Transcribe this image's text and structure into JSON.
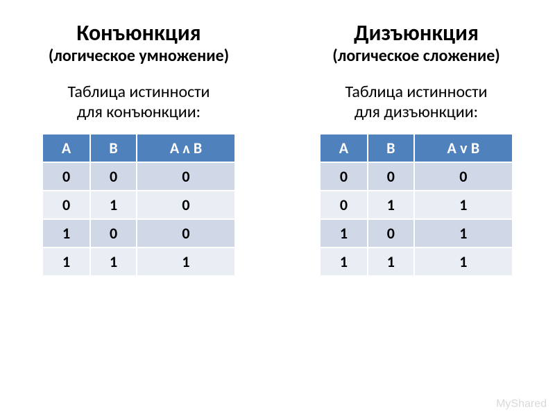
{
  "left": {
    "title": "Конъюнкция",
    "subtitle": "(логическое умножение)",
    "caption_line1": "Таблица истинности",
    "caption_line2": "для конъюнкции:",
    "table": {
      "columns": [
        "A",
        "B",
        "A ᴧ B"
      ],
      "rows": [
        [
          "0",
          "0",
          "0"
        ],
        [
          "0",
          "1",
          "0"
        ],
        [
          "1",
          "0",
          "0"
        ],
        [
          "1",
          "1",
          "1"
        ]
      ]
    }
  },
  "right": {
    "title": "Дизъюнкция",
    "subtitle": "(логическое сложение)",
    "caption_line1": "Таблица истинности",
    "caption_line2": "для дизъюнкции:",
    "table": {
      "columns": [
        "A",
        "B",
        "A ᴠ B"
      ],
      "rows": [
        [
          "0",
          "0",
          "0"
        ],
        [
          "0",
          "1",
          "1"
        ],
        [
          "1",
          "0",
          "1"
        ],
        [
          "1",
          "1",
          "1"
        ]
      ]
    }
  },
  "watermark": "MyShared",
  "style": {
    "header_bg": "#4f81bd",
    "header_fg": "#ffffff",
    "row_odd_bg": "#d0d8e8",
    "row_even_bg": "#e9edf4",
    "title_fontsize": 32,
    "subtitle_fontsize": 24,
    "caption_fontsize": 24,
    "cell_fontsize": 22,
    "watermark_color": "#d9d9d9"
  }
}
